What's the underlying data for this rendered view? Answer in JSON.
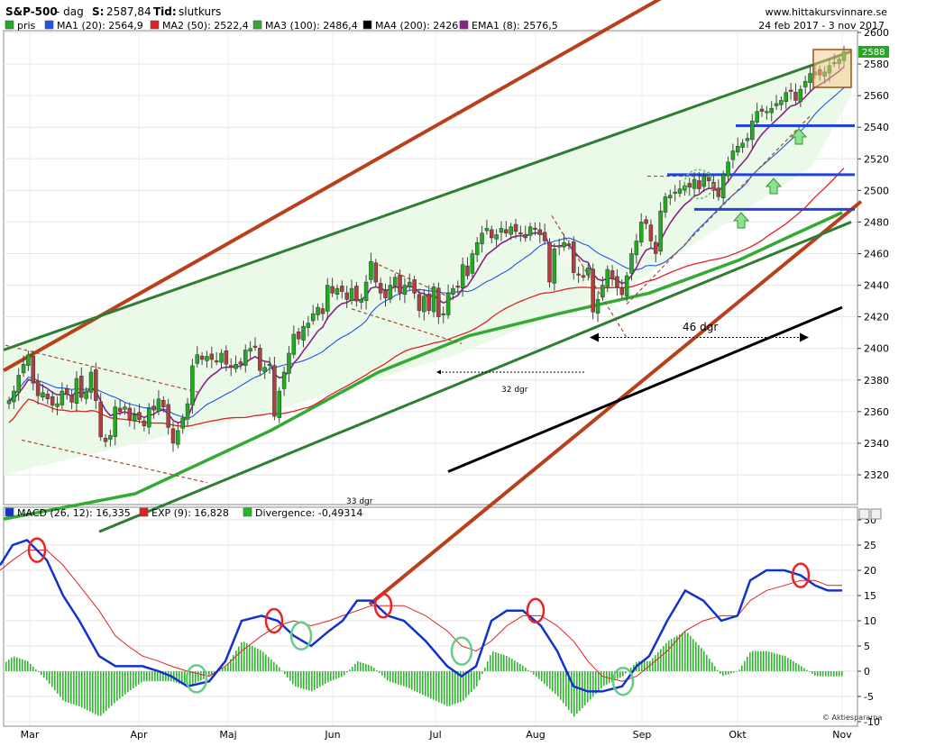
{
  "header": {
    "symbol": "S&P-500",
    "period": "- dag",
    "s_label": "S:",
    "s_value": "2587,84",
    "tid_label": "Tid:",
    "tid_value": "slutkurs",
    "site": "www.hittakursvinnare.se",
    "date_range": "24 feb 2017 - 3 nov 2017"
  },
  "legend_price": [
    {
      "text": "pris",
      "color": "#22aa22"
    },
    {
      "text": "MA1 (20): 2564,9",
      "color": "#2255dd"
    },
    {
      "text": "MA2 (50): 2522,4",
      "color": "#dd2222"
    },
    {
      "text": "MA3 (100): 2486,4",
      "color": "#33aa33"
    },
    {
      "text": "MA4 (200): 2426",
      "color": "#000000"
    },
    {
      "text": "EMA1 (8): 2576,5",
      "color": "#882288"
    }
  ],
  "legend_macd": [
    {
      "text": "MACD (26, 12): 16,335",
      "color": "#1133cc"
    },
    {
      "text": "EXP (9): 16,828",
      "color": "#dd2222"
    },
    {
      "text": "Divergence: -0,49314",
      "color": "#22bb22"
    }
  ],
  "annotations": {
    "days_46": "46 dgr",
    "days_32": "32 dgr",
    "days_33": "33 dgr",
    "last_price_tag": "2588",
    "copyright": "© Aktiespararna"
  },
  "colors": {
    "up_candle": "#22aa22",
    "down_candle": "#b04040",
    "channel_red": "#b8401a",
    "channel_green": "#2e7d32",
    "ma1": "#2255dd",
    "ma2": "#dd2222",
    "ma3": "#33aa33",
    "ma4": "#000000",
    "ema1": "#882288",
    "support": "#2244dd"
  },
  "chart_data": [
    {
      "type": "candlestick",
      "title": "S&P-500",
      "x_tick_labels": [
        "Mar",
        "Apr",
        "Maj",
        "Jun",
        "Jul",
        "Aug",
        "Sep",
        "Okt",
        "Nov"
      ],
      "y_tick_labels": [
        "2600",
        "2580",
        "2560",
        "2540",
        "2520",
        "2500",
        "2480",
        "2460",
        "2440",
        "2420",
        "2400",
        "2380",
        "2360",
        "2340",
        "2320"
      ],
      "ylim": [
        2305,
        2612
      ],
      "grid": true,
      "close": [
        2367,
        2373,
        2383,
        2390,
        2396,
        2378,
        2370,
        2372,
        2368,
        2364,
        2365,
        2373,
        2371,
        2366,
        2381,
        2369,
        2373,
        2385,
        2367,
        2344,
        2341,
        2345,
        2363,
        2360,
        2363,
        2355,
        2358,
        2355,
        2351,
        2362,
        2361,
        2368,
        2363,
        2350,
        2340,
        2348,
        2356,
        2365,
        2389,
        2396,
        2393,
        2395,
        2393,
        2392,
        2397,
        2390,
        2388,
        2390,
        2390,
        2399,
        2400,
        2401,
        2386,
        2388,
        2390,
        2357,
        2373,
        2385,
        2397,
        2409,
        2406,
        2414,
        2416,
        2422,
        2426,
        2422,
        2440,
        2435,
        2438,
        2436,
        2431,
        2438,
        2430,
        2431,
        2442,
        2455,
        2442,
        2435,
        2432,
        2440,
        2445,
        2435,
        2440,
        2442,
        2435,
        2424,
        2433,
        2424,
        2439,
        2420,
        2422,
        2435,
        2438,
        2439,
        2453,
        2446,
        2460,
        2467,
        2473,
        2476,
        2470,
        2472,
        2476,
        2473,
        2477,
        2474,
        2473,
        2470,
        2477,
        2476,
        2472,
        2468,
        2442,
        2463,
        2465,
        2467,
        2466,
        2448,
        2447,
        2445,
        2451,
        2423,
        2431,
        2440,
        2450,
        2444,
        2439,
        2434,
        2446,
        2460,
        2468,
        2480,
        2479,
        2468,
        2460,
        2487,
        2496,
        2497,
        2499,
        2501,
        2503,
        2502,
        2507,
        2501,
        2509,
        2506,
        2500,
        2496,
        2510,
        2518,
        2525,
        2528,
        2530,
        2533,
        2544,
        2550,
        2550,
        2550,
        2552,
        2555,
        2557,
        2562,
        2563,
        2557,
        2564,
        2569,
        2574,
        2575,
        2573,
        2575,
        2579,
        2581,
        2583,
        2588
      ],
      "ma4_endpoints": [
        2322,
        2426
      ],
      "channel_lines": {
        "red_upper": [
          2386,
          2640
        ],
        "red_lower": [
          2238,
          2493
        ],
        "green_upper": [
          2399,
          2588
        ],
        "green_lower": [
          2284,
          2480
        ]
      },
      "support_levels": [
        2541,
        2510,
        2488
      ],
      "annotations": [
        "46 dgr",
        "32 dgr",
        "33 dgr"
      ]
    },
    {
      "type": "line",
      "title": "MACD (26, 12)",
      "x_tick_labels": [
        "Mar",
        "Apr",
        "Maj",
        "Jun",
        "Jul",
        "Aug",
        "Sep",
        "Okt",
        "Nov"
      ],
      "y_tick_labels": [
        "30",
        "25",
        "20",
        "15",
        "10",
        "5",
        "0",
        "-5",
        "-10"
      ],
      "ylim": [
        -10,
        30
      ],
      "grid": true,
      "series": [
        {
          "name": "MACD (26, 12)",
          "x": [
            0,
            14,
            30,
            52,
            70,
            88,
            110,
            128,
            142,
            158,
            176,
            190,
            208,
            232,
            250,
            268,
            290,
            308,
            326,
            345,
            365,
            380,
            396,
            412,
            430,
            448,
            472,
            496,
            512,
            528,
            545,
            562,
            580,
            600,
            618,
            636,
            652,
            668,
            690,
            706,
            720,
            740,
            760,
            780,
            800,
            818,
            832,
            850,
            870,
            888,
            904,
            918,
            934
          ],
          "y": [
            21,
            25,
            26,
            22,
            15,
            10,
            3,
            1,
            1,
            1,
            0,
            -1,
            -3,
            -2,
            2,
            10,
            11,
            10,
            7,
            5,
            8,
            10,
            14,
            14,
            11,
            10,
            6,
            1,
            -1,
            1,
            10,
            12,
            12,
            9,
            4,
            -3,
            -4,
            -4,
            -3,
            1,
            3,
            10,
            16,
            14,
            10,
            11,
            18,
            20,
            20,
            19,
            17,
            16,
            16
          ]
        },
        {
          "name": "EXP (9)",
          "x": [
            0,
            14,
            30,
            52,
            70,
            88,
            110,
            128,
            142,
            158,
            176,
            190,
            208,
            232,
            250,
            268,
            290,
            308,
            326,
            345,
            365,
            380,
            396,
            412,
            430,
            448,
            472,
            496,
            512,
            528,
            545,
            562,
            580,
            600,
            618,
            636,
            652,
            668,
            690,
            706,
            720,
            740,
            760,
            780,
            800,
            818,
            832,
            850,
            870,
            888,
            904,
            918,
            934
          ],
          "y": [
            20,
            22,
            24,
            24,
            21,
            17,
            12,
            7,
            5,
            3,
            2,
            1,
            0,
            -1,
            1,
            4,
            7,
            9,
            10,
            9,
            10,
            11,
            12,
            13,
            13,
            13,
            11,
            8,
            5,
            4,
            6,
            9,
            11,
            11,
            9,
            6,
            2,
            -1,
            -2,
            -1,
            1,
            4,
            8,
            10,
            11,
            11,
            14,
            16,
            17,
            18,
            18,
            17,
            17
          ]
        },
        {
          "name": "Divergence",
          "x": [
            0,
            14,
            30,
            52,
            70,
            88,
            110,
            128,
            142,
            158,
            176,
            190,
            208,
            232,
            250,
            268,
            290,
            308,
            326,
            345,
            365,
            380,
            396,
            412,
            430,
            448,
            472,
            496,
            512,
            528,
            545,
            562,
            580,
            600,
            618,
            636,
            652,
            668,
            690,
            706,
            720,
            740,
            760,
            780,
            800,
            818,
            832,
            850,
            870,
            888,
            904,
            918,
            934
          ],
          "y": [
            1,
            3,
            2,
            -2,
            -6,
            -7,
            -9,
            -6,
            -4,
            -2,
            -2,
            -2,
            -3,
            -1,
            1,
            6,
            4,
            1,
            -3,
            -4,
            -2,
            -1,
            2,
            1,
            -2,
            -3,
            -5,
            -7,
            -6,
            -3,
            4,
            3,
            1,
            -2,
            -5,
            -9,
            -6,
            -3,
            -1,
            2,
            2,
            6,
            8,
            4,
            -1,
            0,
            4,
            4,
            3,
            1,
            -1,
            -1,
            -1
          ]
        }
      ],
      "annotations": [
        "© Aktiespararna"
      ]
    }
  ]
}
